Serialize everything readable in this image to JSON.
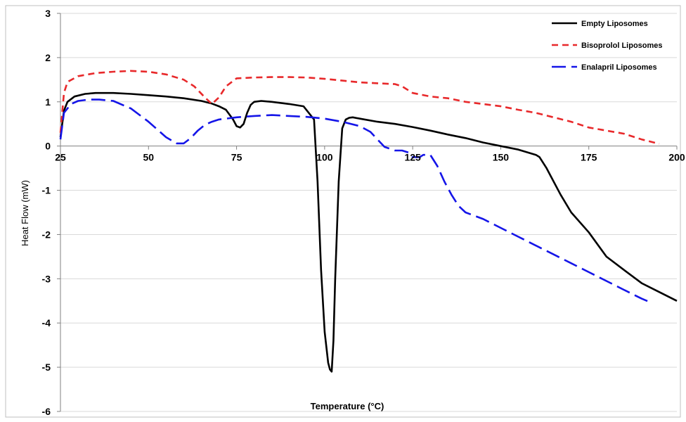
{
  "chart_data": {
    "type": "line",
    "title": "",
    "xlabel": "Temperature (°C)",
    "ylabel": "Heat Flow (mW)",
    "xlim": [
      25,
      200
    ],
    "ylim": [
      -6,
      3
    ],
    "x_ticks": [
      25,
      50,
      75,
      100,
      125,
      150,
      175,
      200
    ],
    "y_ticks": [
      3,
      2,
      1,
      0,
      -1,
      -2,
      -3,
      -4,
      -5,
      -6
    ],
    "x_tick_labels": [
      "25",
      "50",
      "75",
      "100",
      "125",
      "150",
      "175",
      "200"
    ],
    "y_tick_labels": [
      "3",
      "2",
      "1",
      "0",
      "-1",
      "-2",
      "-3",
      "-4",
      "-5",
      "-6"
    ],
    "grid": "horizontal",
    "legend_position": "top-right",
    "series": [
      {
        "name": "Empty Liposomes",
        "color": "#000000",
        "style": "solid",
        "x": [
          25,
          26,
          27,
          29,
          32,
          35,
          40,
          45,
          50,
          55,
          60,
          65,
          68,
          70,
          72,
          74,
          75,
          76,
          77,
          78,
          79,
          80,
          82,
          85,
          90,
          94,
          97,
          98,
          99,
          100,
          101,
          101.5,
          102,
          102.5,
          103,
          104,
          105,
          106,
          107,
          108,
          110,
          115,
          120,
          125,
          130,
          135,
          140,
          145,
          150,
          155,
          160,
          161,
          163,
          165,
          167,
          170,
          175,
          180,
          185,
          190,
          195,
          200
        ],
        "y": [
          0.2,
          0.8,
          1.0,
          1.12,
          1.18,
          1.2,
          1.2,
          1.18,
          1.15,
          1.12,
          1.08,
          1.02,
          0.96,
          0.9,
          0.82,
          0.6,
          0.45,
          0.42,
          0.5,
          0.75,
          0.93,
          1.0,
          1.02,
          1.0,
          0.95,
          0.9,
          0.6,
          -0.8,
          -2.8,
          -4.2,
          -4.9,
          -5.05,
          -5.1,
          -4.4,
          -3.0,
          -0.8,
          0.4,
          0.6,
          0.64,
          0.65,
          0.62,
          0.55,
          0.5,
          0.43,
          0.35,
          0.26,
          0.18,
          0.08,
          0.0,
          -0.08,
          -0.2,
          -0.25,
          -0.5,
          -0.8,
          -1.1,
          -1.5,
          -1.95,
          -2.5,
          -2.8,
          -3.1,
          -3.3,
          -3.5
        ]
      },
      {
        "name": "Bisoprolol Liposomes",
        "color": "#e8292b",
        "style": "dashed",
        "x": [
          25,
          26,
          27,
          30,
          35,
          40,
          45,
          50,
          55,
          60,
          63,
          66,
          68,
          70,
          72,
          75,
          80,
          85,
          90,
          95,
          100,
          105,
          110,
          115,
          120,
          122,
          125,
          130,
          135,
          140,
          145,
          150,
          155,
          160,
          165,
          170,
          175,
          180,
          185,
          190,
          195
        ],
        "y": [
          0.3,
          1.2,
          1.45,
          1.58,
          1.65,
          1.68,
          1.7,
          1.68,
          1.62,
          1.5,
          1.35,
          1.1,
          0.95,
          1.1,
          1.35,
          1.53,
          1.55,
          1.56,
          1.56,
          1.55,
          1.52,
          1.48,
          1.44,
          1.42,
          1.4,
          1.35,
          1.2,
          1.12,
          1.08,
          1.0,
          0.95,
          0.9,
          0.82,
          0.75,
          0.65,
          0.55,
          0.42,
          0.35,
          0.28,
          0.15,
          0.05
        ]
      },
      {
        "name": "Enalapril Liposomes",
        "color": "#1515e8",
        "style": "longdash",
        "x": [
          25,
          26,
          28,
          30,
          33,
          36,
          40,
          45,
          50,
          55,
          58,
          60,
          62,
          64,
          66,
          68,
          70,
          75,
          80,
          85,
          90,
          95,
          100,
          105,
          110,
          113,
          115,
          117,
          120,
          122,
          124,
          125,
          127,
          128,
          130,
          132,
          134,
          136,
          138,
          140,
          145,
          150,
          155,
          160,
          165,
          170,
          175,
          180,
          185,
          190,
          193
        ],
        "y": [
          0.15,
          0.75,
          0.95,
          1.02,
          1.05,
          1.05,
          1.02,
          0.85,
          0.55,
          0.2,
          0.06,
          0.06,
          0.18,
          0.35,
          0.48,
          0.55,
          0.6,
          0.65,
          0.68,
          0.7,
          0.68,
          0.66,
          0.62,
          0.55,
          0.45,
          0.32,
          0.15,
          -0.02,
          -0.1,
          -0.1,
          -0.15,
          -0.25,
          -0.25,
          -0.2,
          -0.2,
          -0.45,
          -0.8,
          -1.1,
          -1.35,
          -1.5,
          -1.65,
          -1.85,
          -2.05,
          -2.25,
          -2.45,
          -2.65,
          -2.85,
          -3.05,
          -3.25,
          -3.45,
          -3.55
        ]
      }
    ]
  }
}
